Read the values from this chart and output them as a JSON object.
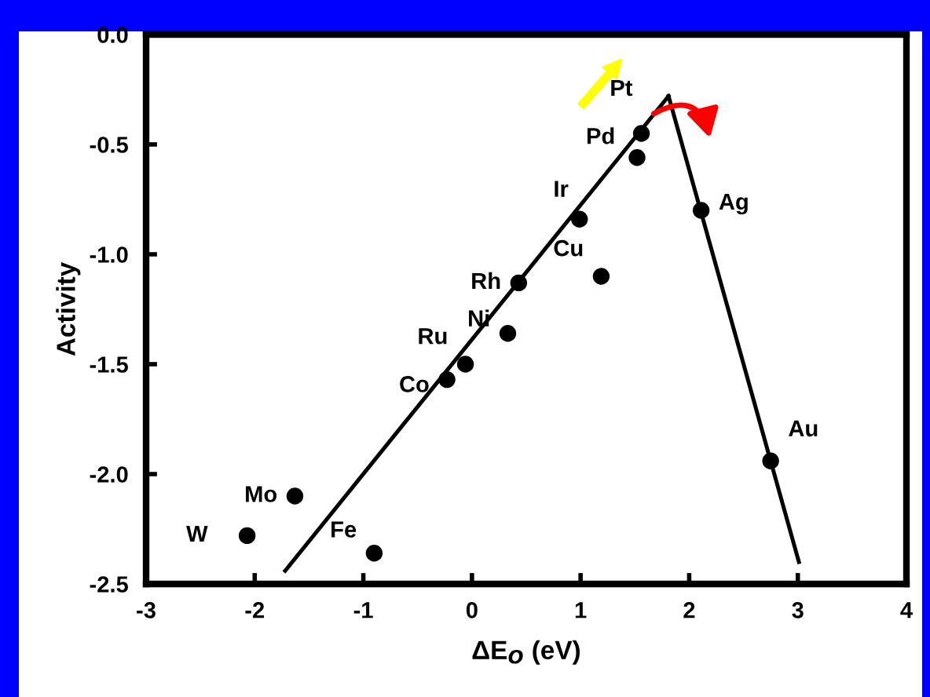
{
  "chart_data": {
    "type": "scatter",
    "xlabel": "ΔE$_{O}$ (eV)",
    "ylabel": "Activity",
    "xlim": [
      -3,
      4
    ],
    "xticks": [
      -3,
      -2,
      -1,
      0,
      1,
      2,
      3,
      4
    ],
    "ylim": [
      -2.5,
      0.0
    ],
    "yticks": [
      {
        "value": -2.5,
        "label": "-2.5"
      },
      {
        "value": -2.0,
        "label": "-2.0"
      },
      {
        "value": -1.5,
        "label": "-1.5"
      },
      {
        "value": -1.0,
        "label": "-1.0"
      },
      {
        "value": -0.5,
        "label": "-0.5"
      },
      {
        "value": 0.0,
        "label": "0.0"
      }
    ],
    "grid": false,
    "series": [
      {
        "marker": "circle",
        "color": "#000000",
        "x": [
          -2.07,
          -1.63,
          -0.9,
          -0.23,
          -0.06,
          0.33,
          0.43,
          1.19,
          0.99,
          1.52,
          1.56,
          2.11,
          2.75
        ],
        "values": [
          -2.28,
          -2.1,
          -2.36,
          -1.57,
          -1.5,
          -1.36,
          -1.13,
          -1.1,
          -0.84,
          -0.56,
          -0.45,
          -0.8,
          -1.94
        ]
      },
      {
        "type": "line",
        "marker": "none",
        "color": "#000000",
        "x": [
          -1.72,
          1.81
        ],
        "values": [
          -2.44,
          -0.28
        ]
      },
      {
        "type": "line",
        "marker": "none",
        "color": "#000000",
        "x": [
          1.81,
          3.01
        ],
        "values": [
          -0.28,
          -2.4
        ]
      }
    ],
    "annotations": [
      {
        "text": "W",
        "x": -2.07,
        "y": -2.28
      },
      {
        "text": "Mo",
        "x": -1.63,
        "y": -2.1
      },
      {
        "text": "Fe",
        "x": -0.9,
        "y": -2.36
      },
      {
        "text": "Co",
        "x": -0.23,
        "y": -1.57
      },
      {
        "text": "Ru",
        "x": -0.06,
        "y": -1.5
      },
      {
        "text": "Ni",
        "x": 0.33,
        "y": -1.36
      },
      {
        "text": "Rh",
        "x": 0.43,
        "y": -1.13
      },
      {
        "text": "Cu",
        "x": 1.19,
        "y": -1.1
      },
      {
        "text": "Ir",
        "x": 0.99,
        "y": -0.84
      },
      {
        "text": "Pd",
        "x": 1.52,
        "y": -0.56
      },
      {
        "text": "Pt",
        "x": 1.56,
        "y": -0.45
      },
      {
        "text": "Ag",
        "x": 2.11,
        "y": -0.8
      },
      {
        "text": "Au",
        "x": 2.75,
        "y": -1.94
      }
    ]
  }
}
